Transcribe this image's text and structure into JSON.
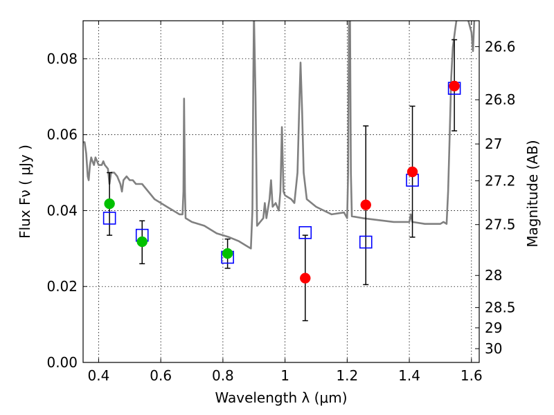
{
  "chart_data": {
    "type": "scatter",
    "xlabel": "Wavelength  λ (μm)",
    "ylabel": "Flux  Fν  ( μJy )",
    "y2label": "Magnitude (AB)",
    "xlim": [
      0.35,
      1.625
    ],
    "ylim": [
      0.0,
      0.09
    ],
    "grid": true,
    "x_ticks": [
      {
        "v": 0.4,
        "label": "0.4"
      },
      {
        "v": 0.6,
        "label": "0.6"
      },
      {
        "v": 0.8,
        "label": "0.8"
      },
      {
        "v": 1.0,
        "label": "1"
      },
      {
        "v": 1.2,
        "label": "1.2"
      },
      {
        "v": 1.4,
        "label": "1.4"
      },
      {
        "v": 1.6,
        "label": "1.6"
      }
    ],
    "y_ticks": [
      {
        "v": 0.0,
        "label": "0.00"
      },
      {
        "v": 0.02,
        "label": "0.02"
      },
      {
        "v": 0.04,
        "label": "0.04"
      },
      {
        "v": 0.06,
        "label": "0.06"
      },
      {
        "v": 0.08,
        "label": "0.08"
      }
    ],
    "y2_ticks": [
      {
        "v": 26.6,
        "label": "26.6"
      },
      {
        "v": 26.8,
        "label": "26.8"
      },
      {
        "v": 27.0,
        "label": "27"
      },
      {
        "v": 27.2,
        "label": "27.2"
      },
      {
        "v": 27.5,
        "label": "27.5"
      },
      {
        "v": 28.0,
        "label": "28"
      },
      {
        "v": 28.5,
        "label": "28.5"
      },
      {
        "v": 29.0,
        "label": "29"
      },
      {
        "v": 30.0,
        "label": "30"
      }
    ],
    "sed_model": {
      "color": "#808080",
      "points": [
        [
          0.35,
          0.058
        ],
        [
          0.355,
          0.058
        ],
        [
          0.36,
          0.055
        ],
        [
          0.365,
          0.049
        ],
        [
          0.368,
          0.048
        ],
        [
          0.372,
          0.052
        ],
        [
          0.376,
          0.054
        ],
        [
          0.38,
          0.053
        ],
        [
          0.385,
          0.052
        ],
        [
          0.39,
          0.054
        ],
        [
          0.395,
          0.053
        ],
        [
          0.4,
          0.052
        ],
        [
          0.41,
          0.052
        ],
        [
          0.415,
          0.053
        ],
        [
          0.42,
          0.052
        ],
        [
          0.43,
          0.051
        ],
        [
          0.435,
          0.047
        ],
        [
          0.44,
          0.05
        ],
        [
          0.45,
          0.05
        ],
        [
          0.46,
          0.049
        ],
        [
          0.47,
          0.047
        ],
        [
          0.475,
          0.045
        ],
        [
          0.48,
          0.048
        ],
        [
          0.49,
          0.049
        ],
        [
          0.5,
          0.048
        ],
        [
          0.51,
          0.048
        ],
        [
          0.52,
          0.047
        ],
        [
          0.54,
          0.047
        ],
        [
          0.56,
          0.045
        ],
        [
          0.58,
          0.043
        ],
        [
          0.6,
          0.042
        ],
        [
          0.62,
          0.041
        ],
        [
          0.64,
          0.04
        ],
        [
          0.66,
          0.039
        ],
        [
          0.67,
          0.039
        ],
        [
          0.673,
          0.045
        ],
        [
          0.675,
          0.0695
        ],
        [
          0.678,
          0.045
        ],
        [
          0.68,
          0.038
        ],
        [
          0.7,
          0.037
        ],
        [
          0.74,
          0.036
        ],
        [
          0.78,
          0.034
        ],
        [
          0.82,
          0.033
        ],
        [
          0.85,
          0.032
        ],
        [
          0.88,
          0.0305
        ],
        [
          0.89,
          0.03
        ],
        [
          0.895,
          0.04
        ],
        [
          0.898,
          0.075
        ],
        [
          0.9,
          0.092
        ],
        [
          0.905,
          0.07
        ],
        [
          0.91,
          0.036
        ],
        [
          0.93,
          0.038
        ],
        [
          0.935,
          0.042
        ],
        [
          0.94,
          0.038
        ],
        [
          0.95,
          0.043
        ],
        [
          0.955,
          0.048
        ],
        [
          0.96,
          0.041
        ],
        [
          0.97,
          0.042
        ],
        [
          0.98,
          0.04
        ],
        [
          0.985,
          0.045
        ],
        [
          0.99,
          0.062
        ],
        [
          0.995,
          0.045
        ],
        [
          1.0,
          0.044
        ],
        [
          1.02,
          0.043
        ],
        [
          1.03,
          0.042
        ],
        [
          1.04,
          0.05
        ],
        [
          1.045,
          0.065
        ],
        [
          1.05,
          0.079
        ],
        [
          1.055,
          0.066
        ],
        [
          1.06,
          0.05
        ],
        [
          1.07,
          0.043
        ],
        [
          1.1,
          0.041
        ],
        [
          1.15,
          0.039
        ],
        [
          1.19,
          0.0395
        ],
        [
          1.2,
          0.038
        ],
        [
          1.203,
          0.05
        ],
        [
          1.206,
          0.092
        ],
        [
          1.209,
          0.092
        ],
        [
          1.212,
          0.05
        ],
        [
          1.215,
          0.0385
        ],
        [
          1.25,
          0.038
        ],
        [
          1.3,
          0.0375
        ],
        [
          1.35,
          0.037
        ],
        [
          1.39,
          0.037
        ],
        [
          1.4,
          0.037
        ],
        [
          1.405,
          0.039
        ],
        [
          1.41,
          0.037
        ],
        [
          1.45,
          0.0365
        ],
        [
          1.5,
          0.0365
        ],
        [
          1.51,
          0.037
        ],
        [
          1.52,
          0.0365
        ],
        [
          1.525,
          0.045
        ],
        [
          1.53,
          0.06
        ],
        [
          1.535,
          0.075
        ],
        [
          1.54,
          0.083
        ],
        [
          1.548,
          0.088
        ],
        [
          1.555,
          0.092
        ],
        [
          1.57,
          0.092
        ],
        [
          1.58,
          0.092
        ],
        [
          1.59,
          0.09
        ],
        [
          1.6,
          0.087
        ],
        [
          1.605,
          0.082
        ],
        [
          1.61,
          0.092
        ]
      ]
    },
    "series": [
      {
        "marker": "square",
        "color": "#0000ff",
        "points": [
          {
            "x": 0.435,
            "y": 0.038
          },
          {
            "x": 0.54,
            "y": 0.0335
          },
          {
            "x": 0.815,
            "y": 0.0277
          },
          {
            "x": 1.065,
            "y": 0.0342
          },
          {
            "x": 1.26,
            "y": 0.0317
          },
          {
            "x": 1.41,
            "y": 0.048
          },
          {
            "x": 1.545,
            "y": 0.0722
          }
        ]
      },
      {
        "marker": "circle",
        "color": "#00c000",
        "points": [
          {
            "x": 0.435,
            "y": 0.0418,
            "err": [
              0.0335,
              0.05
            ]
          },
          {
            "x": 0.54,
            "y": 0.0318,
            "err": [
              0.026,
              0.0373
            ]
          },
          {
            "x": 0.815,
            "y": 0.0287,
            "err": [
              0.0248,
              0.0325
            ]
          }
        ]
      },
      {
        "marker": "circle",
        "color": "#ff0000",
        "points": [
          {
            "x": 1.065,
            "y": 0.0222,
            "err": [
              0.011,
              0.0335
            ]
          },
          {
            "x": 1.26,
            "y": 0.0415,
            "err": [
              0.0205,
              0.0623
            ]
          },
          {
            "x": 1.41,
            "y": 0.0502,
            "err": [
              0.033,
              0.0675
            ]
          },
          {
            "x": 1.545,
            "y": 0.0728,
            "err": [
              0.061,
              0.085
            ]
          }
        ]
      }
    ]
  }
}
